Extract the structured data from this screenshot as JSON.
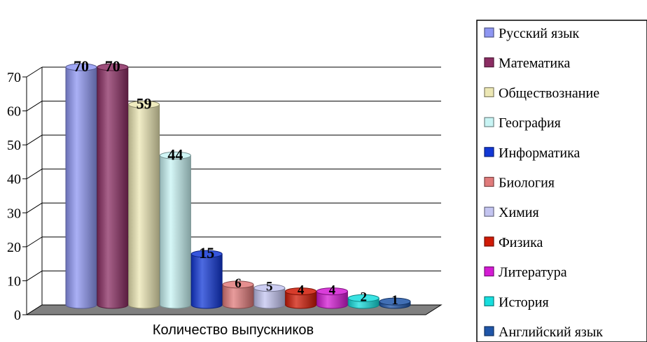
{
  "chart_data": {
    "type": "bar",
    "title": "",
    "xlabel": "Количество выпускников",
    "ylabel": "",
    "ylim": [
      0,
      70
    ],
    "yticks": [
      0,
      10,
      20,
      30,
      40,
      50,
      60,
      70
    ],
    "grid": true,
    "legend_position": "right",
    "series": [
      {
        "name": "Русский язык",
        "value": 70,
        "label": "70",
        "color": "#8e96f2"
      },
      {
        "name": "Математика",
        "value": 70,
        "label": "70",
        "color": "#8b2d63"
      },
      {
        "name": "Обществознание",
        "value": 59,
        "label": "59",
        "color": "#ece7b4"
      },
      {
        "name": "География",
        "value": 44,
        "label": "44",
        "color": "#c8f4f4"
      },
      {
        "name": "Информатика",
        "value": 15,
        "label": "15",
        "color": "#1238d6"
      },
      {
        "name": "Биология",
        "value": 6,
        "label": "6",
        "color": "#e07b7b"
      },
      {
        "name": "Химия",
        "value": 5,
        "label": "5",
        "color": "#c3c4f0"
      },
      {
        "name": "Физика",
        "value": 4,
        "label": "4",
        "color": "#d01a06"
      },
      {
        "name": "Литература",
        "value": 4,
        "label": "4",
        "color": "#d41bd4"
      },
      {
        "name": "История",
        "value": 2,
        "label": "2",
        "color": "#16dede"
      },
      {
        "name": "Английский язык",
        "value": 1,
        "label": "1",
        "color": "#1f55a8"
      }
    ]
  }
}
